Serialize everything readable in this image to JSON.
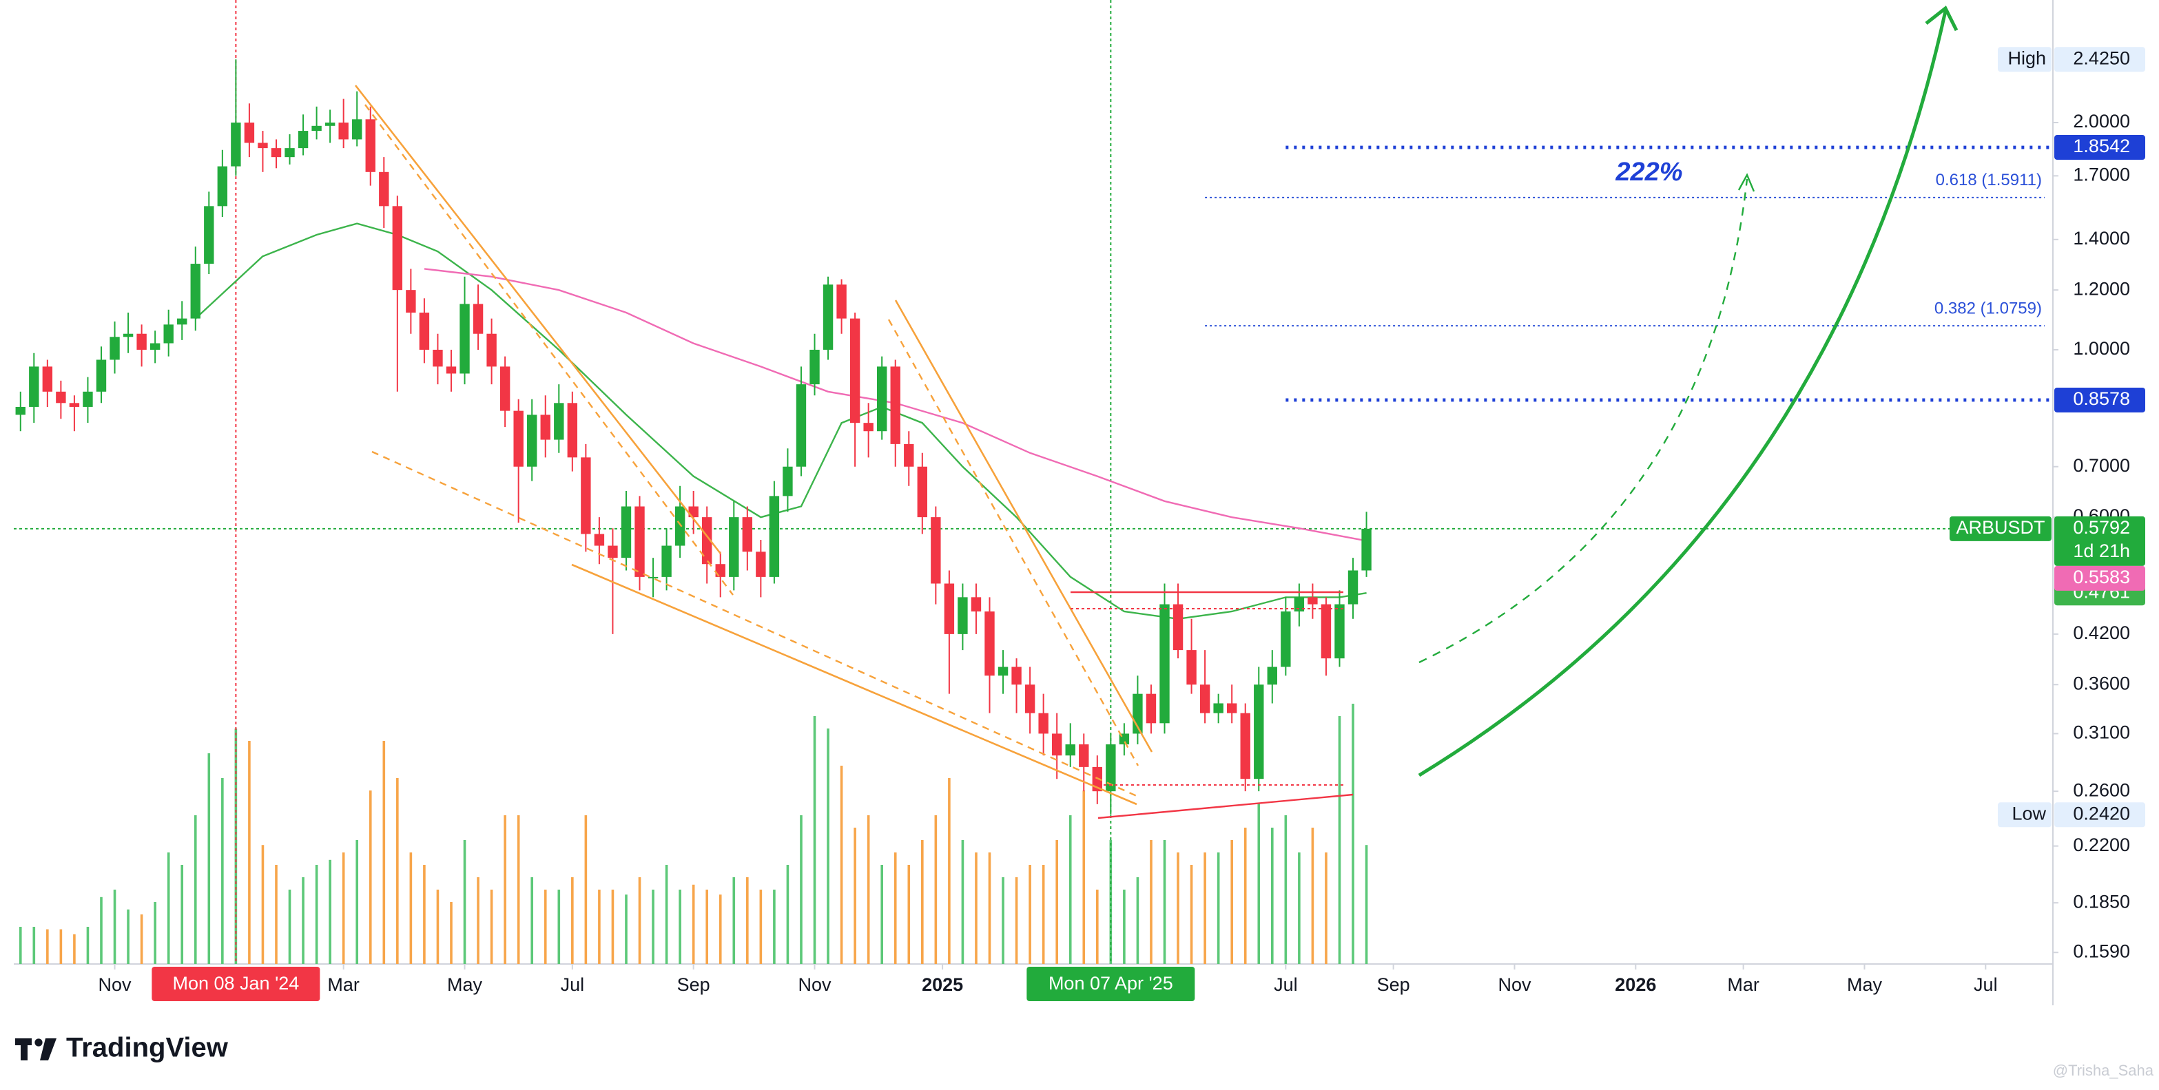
{
  "chart_data": {
    "type": "candlestick",
    "symbol": "ARBUSDT",
    "countdown": "1d 21h",
    "log_scale": true,
    "grid": false,
    "up_color": "#22ab3c",
    "down_color": "#f23645",
    "volume_up_color": "#5cc878",
    "volume_down_color": "#f7a54a",
    "xlim": [
      -0.5,
      151
    ],
    "xticks": [
      {
        "value": 7,
        "label": "Nov"
      },
      {
        "value": 24,
        "label": "Mar"
      },
      {
        "value": 33,
        "label": "May"
      },
      {
        "value": 41,
        "label": "Jul"
      },
      {
        "value": 50,
        "label": "Sep"
      },
      {
        "value": 59,
        "label": "Nov"
      },
      {
        "value": 68.5,
        "label": "2025",
        "bold": true
      },
      {
        "value": 94,
        "label": "Jul"
      },
      {
        "value": 102,
        "label": "Sep"
      },
      {
        "value": 111,
        "label": "Nov"
      },
      {
        "value": 120,
        "label": "2026",
        "bold": true
      },
      {
        "value": 128,
        "label": "Mar"
      },
      {
        "value": 137,
        "label": "May"
      },
      {
        "value": 146,
        "label": "Jul"
      }
    ],
    "ylim": [
      0.1535,
      2.907
    ],
    "yticks": [
      {
        "value": 2,
        "label": "2.0000"
      },
      {
        "value": 1.7,
        "label": "1.7000"
      },
      {
        "value": 1.4,
        "label": "1.4000"
      },
      {
        "value": 1.2,
        "label": "1.2000"
      },
      {
        "value": 1,
        "label": "1.0000"
      },
      {
        "value": 0.7,
        "label": "0.7000"
      },
      {
        "value": 0.6,
        "label": "0.6000"
      },
      {
        "value": 0.42,
        "label": "0.4200"
      },
      {
        "value": 0.36,
        "label": "0.3600"
      },
      {
        "value": 0.31,
        "label": "0.3100"
      },
      {
        "value": 0.26,
        "label": "0.2600"
      },
      {
        "value": 0.22,
        "label": "0.2200"
      },
      {
        "value": 0.185,
        "label": "0.1850"
      },
      {
        "value": 0.159,
        "label": "0.1590"
      }
    ],
    "candles": [
      [
        0.82,
        0.88,
        0.78,
        0.84
      ],
      [
        0.84,
        0.99,
        0.8,
        0.95
      ],
      [
        0.95,
        0.97,
        0.84,
        0.88
      ],
      [
        0.88,
        0.91,
        0.81,
        0.85
      ],
      [
        0.85,
        0.87,
        0.78,
        0.84
      ],
      [
        0.84,
        0.92,
        0.8,
        0.88
      ],
      [
        0.88,
        1.01,
        0.85,
        0.97
      ],
      [
        0.97,
        1.09,
        0.93,
        1.04
      ],
      [
        1.04,
        1.12,
        0.99,
        1.05
      ],
      [
        1.05,
        1.08,
        0.95,
        1.0
      ],
      [
        1.0,
        1.06,
        0.96,
        1.02
      ],
      [
        1.02,
        1.13,
        0.98,
        1.08
      ],
      [
        1.08,
        1.16,
        1.03,
        1.1
      ],
      [
        1.1,
        1.37,
        1.06,
        1.3
      ],
      [
        1.3,
        1.62,
        1.26,
        1.55
      ],
      [
        1.55,
        1.84,
        1.5,
        1.75
      ],
      [
        1.75,
        2.425,
        1.7,
        2.0
      ],
      [
        2.0,
        2.12,
        1.8,
        1.88
      ],
      [
        1.88,
        1.95,
        1.72,
        1.85
      ],
      [
        1.85,
        1.9,
        1.74,
        1.8
      ],
      [
        1.8,
        1.93,
        1.76,
        1.85
      ],
      [
        1.85,
        2.05,
        1.81,
        1.95
      ],
      [
        1.95,
        2.1,
        1.9,
        1.98
      ],
      [
        1.98,
        2.08,
        1.88,
        2.0
      ],
      [
        2.0,
        2.15,
        1.85,
        1.9
      ],
      [
        1.9,
        2.2,
        1.86,
        2.02
      ],
      [
        2.02,
        2.1,
        1.65,
        1.72
      ],
      [
        1.72,
        1.8,
        1.45,
        1.55
      ],
      [
        1.55,
        1.6,
        0.88,
        1.2
      ],
      [
        1.2,
        1.28,
        1.05,
        1.12
      ],
      [
        1.12,
        1.17,
        0.96,
        1.0
      ],
      [
        1.0,
        1.05,
        0.9,
        0.95
      ],
      [
        0.95,
        1.0,
        0.88,
        0.93
      ],
      [
        0.93,
        1.25,
        0.9,
        1.15
      ],
      [
        1.15,
        1.22,
        1.0,
        1.05
      ],
      [
        1.05,
        1.1,
        0.9,
        0.95
      ],
      [
        0.95,
        0.98,
        0.79,
        0.83
      ],
      [
        0.83,
        0.86,
        0.59,
        0.7
      ],
      [
        0.7,
        0.86,
        0.67,
        0.82
      ],
      [
        0.82,
        0.87,
        0.72,
        0.76
      ],
      [
        0.76,
        0.9,
        0.73,
        0.85
      ],
      [
        0.85,
        0.88,
        0.69,
        0.72
      ],
      [
        0.72,
        0.75,
        0.54,
        0.57
      ],
      [
        0.57,
        0.6,
        0.52,
        0.55
      ],
      [
        0.55,
        0.58,
        0.42,
        0.53
      ],
      [
        0.53,
        0.65,
        0.51,
        0.62
      ],
      [
        0.62,
        0.64,
        0.48,
        0.5
      ],
      [
        0.5,
        0.53,
        0.47,
        0.5
      ],
      [
        0.5,
        0.58,
        0.48,
        0.55
      ],
      [
        0.55,
        0.66,
        0.53,
        0.62
      ],
      [
        0.62,
        0.65,
        0.57,
        0.6
      ],
      [
        0.6,
        0.62,
        0.49,
        0.52
      ],
      [
        0.52,
        0.54,
        0.47,
        0.5
      ],
      [
        0.5,
        0.63,
        0.48,
        0.6
      ],
      [
        0.6,
        0.62,
        0.51,
        0.54
      ],
      [
        0.54,
        0.56,
        0.47,
        0.5
      ],
      [
        0.5,
        0.67,
        0.49,
        0.64
      ],
      [
        0.64,
        0.74,
        0.61,
        0.7
      ],
      [
        0.7,
        0.95,
        0.68,
        0.9
      ],
      [
        0.9,
        1.05,
        0.87,
        1.0
      ],
      [
        1.0,
        1.25,
        0.97,
        1.22
      ],
      [
        1.22,
        1.24,
        1.05,
        1.1
      ],
      [
        1.1,
        1.12,
        0.7,
        0.8
      ],
      [
        0.8,
        0.85,
        0.72,
        0.78
      ],
      [
        0.78,
        0.98,
        0.76,
        0.95
      ],
      [
        0.95,
        0.97,
        0.7,
        0.75
      ],
      [
        0.75,
        0.78,
        0.66,
        0.7
      ],
      [
        0.7,
        0.73,
        0.57,
        0.6
      ],
      [
        0.6,
        0.62,
        0.46,
        0.49
      ],
      [
        0.49,
        0.51,
        0.35,
        0.42
      ],
      [
        0.42,
        0.49,
        0.4,
        0.47
      ],
      [
        0.47,
        0.49,
        0.42,
        0.45
      ],
      [
        0.45,
        0.47,
        0.33,
        0.37
      ],
      [
        0.37,
        0.4,
        0.35,
        0.38
      ],
      [
        0.38,
        0.39,
        0.33,
        0.36
      ],
      [
        0.36,
        0.38,
        0.31,
        0.33
      ],
      [
        0.33,
        0.35,
        0.29,
        0.31
      ],
      [
        0.31,
        0.33,
        0.27,
        0.29
      ],
      [
        0.29,
        0.32,
        0.28,
        0.3
      ],
      [
        0.3,
        0.31,
        0.26,
        0.28
      ],
      [
        0.28,
        0.29,
        0.25,
        0.26
      ],
      [
        0.26,
        0.31,
        0.242,
        0.3
      ],
      [
        0.3,
        0.32,
        0.29,
        0.31
      ],
      [
        0.31,
        0.37,
        0.3,
        0.35
      ],
      [
        0.35,
        0.36,
        0.31,
        0.32
      ],
      [
        0.32,
        0.49,
        0.31,
        0.46
      ],
      [
        0.46,
        0.49,
        0.39,
        0.4
      ],
      [
        0.4,
        0.44,
        0.35,
        0.36
      ],
      [
        0.36,
        0.4,
        0.32,
        0.33
      ],
      [
        0.33,
        0.35,
        0.32,
        0.34
      ],
      [
        0.34,
        0.36,
        0.32,
        0.33
      ],
      [
        0.33,
        0.34,
        0.26,
        0.27
      ],
      [
        0.27,
        0.38,
        0.26,
        0.36
      ],
      [
        0.36,
        0.4,
        0.34,
        0.38
      ],
      [
        0.38,
        0.47,
        0.37,
        0.45
      ],
      [
        0.45,
        0.49,
        0.43,
        0.47
      ],
      [
        0.47,
        0.49,
        0.44,
        0.46
      ],
      [
        0.46,
        0.47,
        0.37,
        0.39
      ],
      [
        0.39,
        0.48,
        0.38,
        0.46
      ],
      [
        0.46,
        0.53,
        0.44,
        0.51
      ],
      [
        0.51,
        0.61,
        0.5,
        0.5792
      ]
    ],
    "volume": [
      15,
      15,
      14,
      14,
      12,
      15,
      27,
      30,
      22,
      20,
      25,
      45,
      40,
      60,
      85,
      75,
      95,
      90,
      48,
      40,
      30,
      35,
      40,
      42,
      45,
      50,
      70,
      90,
      75,
      45,
      40,
      30,
      25,
      50,
      35,
      30,
      60,
      60,
      35,
      30,
      30,
      35,
      60,
      30,
      30,
      28,
      35,
      30,
      40,
      30,
      32,
      30,
      28,
      35,
      35,
      30,
      30,
      40,
      60,
      100,
      95,
      80,
      55,
      60,
      40,
      45,
      40,
      50,
      60,
      75,
      50,
      45,
      45,
      35,
      35,
      40,
      40,
      50,
      60,
      70,
      30,
      50,
      30,
      35,
      50,
      50,
      45,
      40,
      45,
      45,
      50,
      55,
      65,
      55,
      60,
      45,
      55,
      45,
      100,
      105,
      48
    ],
    "moving_averages": [
      {
        "color": "#3cb44b",
        "x": [
          13,
          18,
          22,
          25,
          28,
          31,
          35,
          40,
          45,
          50,
          55,
          58,
          61,
          64,
          67,
          70,
          74,
          78,
          82,
          86,
          90,
          94,
          98,
          100
        ],
        "values": [
          1.1,
          1.33,
          1.42,
          1.47,
          1.42,
          1.35,
          1.2,
          1.0,
          0.82,
          0.68,
          0.6,
          0.62,
          0.8,
          0.84,
          0.8,
          0.7,
          0.6,
          0.5,
          0.45,
          0.44,
          0.45,
          0.47,
          0.47,
          0.4761
        ]
      },
      {
        "color": "#f06bb4",
        "x": [
          30,
          35,
          40,
          45,
          50,
          55,
          60,
          65,
          70,
          75,
          80,
          85,
          90,
          95,
          100
        ],
        "values": [
          1.28,
          1.25,
          1.2,
          1.12,
          1.02,
          0.95,
          0.88,
          0.85,
          0.8,
          0.73,
          0.68,
          0.63,
          0.6,
          0.58,
          0.5583
        ]
      }
    ],
    "levels": [
      {
        "value": 1.8542,
        "x_start": 94,
        "color": "#1e40d6"
      },
      {
        "value": 0.8578,
        "x_start": 94,
        "color": "#1e40d6"
      }
    ],
    "fibonacci": [
      {
        "text": "0.618 (1.5911)",
        "value": 1.5911,
        "x_start": 88
      },
      {
        "text": "0.382 (1.0759)",
        "value": 1.0759,
        "x_start": 88
      }
    ],
    "high": {
      "text": "High",
      "value": 2.425,
      "label": "2.4250"
    },
    "low": {
      "text": "Low",
      "value": 0.242,
      "label": "0.2420"
    },
    "annotation": "222%",
    "date_markers": [
      {
        "value": 16,
        "label": "Mon 08 Jan '24",
        "color": "#f23645"
      },
      {
        "value": 81,
        "label": "Mon 07 Apr '25",
        "color": "#22ab3c"
      }
    ],
    "logo": "TradingView",
    "watermark": "@Trisha_Saha"
  }
}
